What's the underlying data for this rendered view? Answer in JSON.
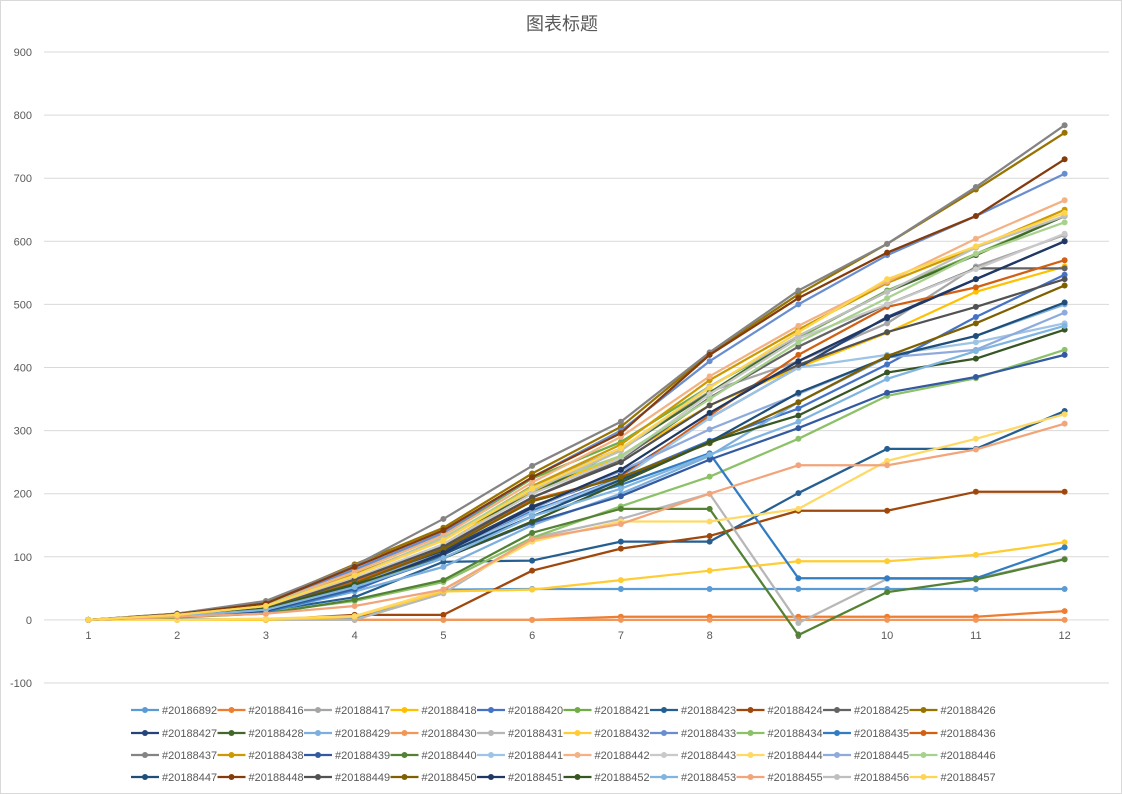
{
  "chart_data": {
    "type": "line",
    "title": "图表标题",
    "xlabel": "",
    "ylabel": "",
    "x": [
      1,
      2,
      3,
      4,
      5,
      6,
      7,
      8,
      9,
      10,
      11,
      12
    ],
    "ylim": [
      -100,
      900
    ],
    "yticks": [
      -100,
      0,
      100,
      200,
      300,
      400,
      500,
      600,
      700,
      800,
      900
    ],
    "grid": true,
    "legend_position": "bottom",
    "series": [
      {
        "name": "#20186892",
        "color": "#5B9BD5",
        "values": [
          0,
          1,
          1,
          2,
          48,
          49,
          49,
          49,
          49,
          49,
          49,
          49
        ]
      },
      {
        "name": "#20188416",
        "color": "#ED7D31",
        "values": [
          0,
          0,
          0,
          0,
          0,
          0,
          5,
          5,
          5,
          5,
          5,
          14
        ]
      },
      {
        "name": "#20188417",
        "color": "#A5A5A5",
        "values": [
          0,
          8,
          22,
          72,
          128,
          212,
          272,
          362,
          410,
          470,
          560,
          610
        ]
      },
      {
        "name": "#20188418",
        "color": "#FFC000",
        "values": [
          0,
          8,
          20,
          60,
          120,
          205,
          258,
          340,
          400,
          455,
          520,
          560
        ]
      },
      {
        "name": "#20188420",
        "color": "#4472C4",
        "values": [
          0,
          6,
          14,
          47,
          103,
          172,
          225,
          284,
          335,
          405,
          480,
          547
        ]
      },
      {
        "name": "#20188421",
        "color": "#70AD47",
        "values": [
          0,
          9,
          24,
          78,
          136,
          224,
          282,
          370,
          447,
          522,
          580,
          640
        ]
      },
      {
        "name": "#20188423",
        "color": "#255E91",
        "values": [
          0,
          5,
          14,
          36,
          92,
          94,
          124,
          124,
          201,
          271,
          271,
          331
        ]
      },
      {
        "name": "#20188424",
        "color": "#9E480E",
        "values": [
          0,
          0,
          0,
          8,
          8,
          78,
          113,
          133,
          173,
          173,
          203,
          203
        ]
      },
      {
        "name": "#20188425",
        "color": "#636363",
        "values": [
          0,
          7,
          18,
          62,
          118,
          194,
          254,
          352,
          433,
          500,
          557,
          557
        ]
      },
      {
        "name": "#20188426",
        "color": "#997300",
        "values": [
          0,
          10,
          28,
          88,
          146,
          232,
          306,
          422,
          516,
          596,
          682,
          772
        ]
      },
      {
        "name": "#20188427",
        "color": "#264478",
        "values": [
          0,
          5,
          14,
          55,
          110,
          180,
          230,
          320,
          400,
          480,
          540,
          600
        ]
      },
      {
        "name": "#20188428",
        "color": "#43682B",
        "values": [
          0,
          8,
          20,
          70,
          130,
          200,
          270,
          360,
          450,
          520,
          578,
          640
        ]
      },
      {
        "name": "#20188429",
        "color": "#7CAFDD",
        "values": [
          0,
          5,
          12,
          45,
          84,
          150,
          200,
          260,
          345,
          416,
          450,
          500
        ]
      },
      {
        "name": "#20188430",
        "color": "#F1975A",
        "values": [
          0,
          0,
          0,
          0,
          0,
          0,
          0,
          0,
          0,
          0,
          0,
          0
        ]
      },
      {
        "name": "#20188431",
        "color": "#B7B7B7",
        "values": [
          0,
          0,
          0,
          0,
          42,
          130,
          160,
          200,
          -5,
          65,
          65,
          97
        ]
      },
      {
        "name": "#20188432",
        "color": "#FFCD33",
        "values": [
          0,
          0,
          0,
          5,
          45,
          48,
          63,
          78,
          93,
          93,
          103,
          123
        ]
      },
      {
        "name": "#20188433",
        "color": "#698ED0",
        "values": [
          0,
          9,
          24,
          80,
          138,
          226,
          300,
          410,
          500,
          578,
          640,
          707
        ]
      },
      {
        "name": "#20188434",
        "color": "#8CC168",
        "values": [
          0,
          5,
          12,
          30,
          60,
          130,
          180,
          227,
          287,
          355,
          383,
          428
        ]
      },
      {
        "name": "#20188435",
        "color": "#327DC2",
        "values": [
          0,
          5,
          12,
          48,
          104,
          174,
          214,
          264,
          66,
          66,
          66,
          115
        ]
      },
      {
        "name": "#20188436",
        "color": "#D26012",
        "values": [
          0,
          7,
          18,
          62,
          114,
          190,
          226,
          324,
          420,
          496,
          527,
          570
        ]
      },
      {
        "name": "#20188437",
        "color": "#848484",
        "values": [
          0,
          10,
          30,
          86,
          160,
          244,
          314,
          424,
          522,
          596,
          686,
          784
        ]
      },
      {
        "name": "#20188438",
        "color": "#CC9A00",
        "values": [
          0,
          8,
          22,
          72,
          128,
          212,
          278,
          380,
          460,
          534,
          590,
          650
        ]
      },
      {
        "name": "#20188439",
        "color": "#335AA1",
        "values": [
          0,
          6,
          14,
          50,
          98,
          154,
          196,
          254,
          304,
          360,
          385,
          420
        ]
      },
      {
        "name": "#20188440",
        "color": "#548235",
        "values": [
          0,
          4,
          10,
          32,
          63,
          138,
          176,
          176,
          -24,
          44,
          64,
          96
        ]
      },
      {
        "name": "#20188441",
        "color": "#9DC3E6",
        "values": [
          0,
          7,
          18,
          56,
          104,
          170,
          224,
          320,
          400,
          420,
          440,
          470
        ]
      },
      {
        "name": "#20188442",
        "color": "#F4B183",
        "values": [
          0,
          8,
          24,
          76,
          134,
          218,
          290,
          386,
          466,
          536,
          604,
          665
        ]
      },
      {
        "name": "#20188443",
        "color": "#C9C9C9",
        "values": [
          0,
          8,
          20,
          66,
          120,
          200,
          256,
          358,
          446,
          500,
          556,
          612
        ]
      },
      {
        "name": "#20188444",
        "color": "#FFD966",
        "values": [
          0,
          0,
          2,
          6,
          48,
          124,
          156,
          156,
          176,
          252,
          287,
          326
        ]
      },
      {
        "name": "#20188445",
        "color": "#8FAADC",
        "values": [
          0,
          7,
          18,
          58,
          106,
          176,
          236,
          302,
          358,
          416,
          428,
          487
        ]
      },
      {
        "name": "#20188446",
        "color": "#A9D18E",
        "values": [
          0,
          8,
          24,
          70,
          130,
          210,
          260,
          350,
          440,
          510,
          580,
          630
        ]
      },
      {
        "name": "#20188447",
        "color": "#1F4E79",
        "values": [
          0,
          7,
          16,
          54,
          104,
          164,
          222,
          282,
          360,
          416,
          450,
          503
        ]
      },
      {
        "name": "#20188448",
        "color": "#843C0C",
        "values": [
          0,
          9,
          26,
          84,
          142,
          226,
          296,
          420,
          510,
          582,
          640,
          730
        ]
      },
      {
        "name": "#20188449",
        "color": "#525252",
        "values": [
          0,
          7,
          18,
          64,
          116,
          194,
          250,
          340,
          404,
          456,
          496,
          540
        ]
      },
      {
        "name": "#20188450",
        "color": "#7F6000",
        "values": [
          0,
          6,
          18,
          58,
          112,
          188,
          226,
          280,
          345,
          418,
          470,
          530
        ]
      },
      {
        "name": "#20188451",
        "color": "#1F3864",
        "values": [
          0,
          6,
          15,
          52,
          106,
          178,
          238,
          328,
          410,
          478,
          540,
          600
        ]
      },
      {
        "name": "#20188452",
        "color": "#375623",
        "values": [
          0,
          7,
          18,
          56,
          98,
          156,
          218,
          282,
          324,
          392,
          414,
          460
        ]
      },
      {
        "name": "#20188453",
        "color": "#7FB5E0",
        "values": [
          0,
          6,
          16,
          52,
          98,
          164,
          208,
          262,
          314,
          382,
          426,
          466
        ]
      },
      {
        "name": "#20188455",
        "color": "#F2A57A",
        "values": [
          0,
          5,
          10,
          22,
          48,
          128,
          152,
          200,
          245,
          245,
          270,
          311
        ]
      },
      {
        "name": "#20188456",
        "color": "#BFBFBF",
        "values": [
          0,
          8,
          22,
          70,
          128,
          206,
          268,
          370,
          450,
          520,
          590,
          640
        ]
      },
      {
        "name": "#20188457",
        "color": "#FFD54F",
        "values": [
          0,
          8,
          22,
          70,
          126,
          208,
          272,
          368,
          456,
          540,
          592,
          645
        ]
      }
    ]
  }
}
